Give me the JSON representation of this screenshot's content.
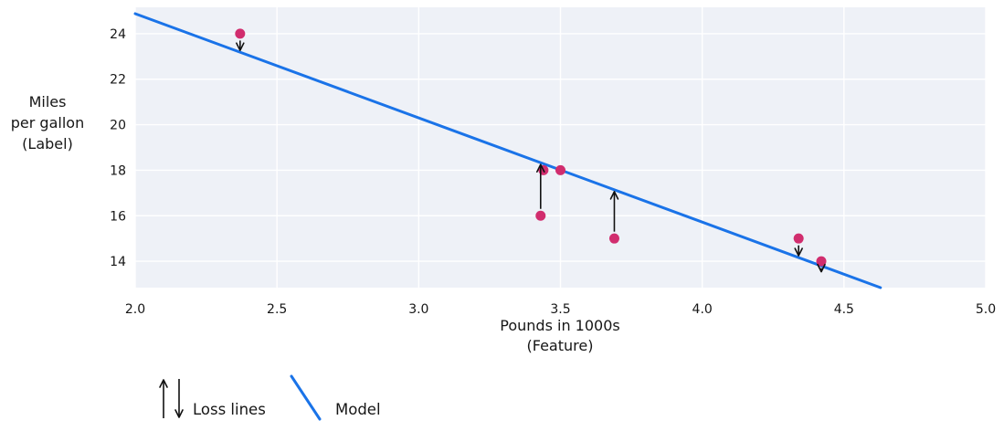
{
  "chart_data": {
    "type": "scatter",
    "title": "",
    "xlabel_line1": "Pounds in 1000s",
    "xlabel_line2": "(Feature)",
    "ylabel_line1": "Miles",
    "ylabel_line2": "per gallon",
    "ylabel_line3": "(Label)",
    "xlim": [
      2.0,
      5.0
    ],
    "ylim": [
      12.84,
      25.16
    ],
    "x_ticks": [
      {
        "v": 2.0,
        "label": "2.0"
      },
      {
        "v": 2.5,
        "label": "2.5"
      },
      {
        "v": 3.0,
        "label": "3.0"
      },
      {
        "v": 3.5,
        "label": "3.5"
      },
      {
        "v": 4.0,
        "label": "4.0"
      },
      {
        "v": 4.5,
        "label": "4.5"
      },
      {
        "v": 5.0,
        "label": "5.0"
      }
    ],
    "y_ticks": [
      {
        "v": 14,
        "label": "14"
      },
      {
        "v": 16,
        "label": "16"
      },
      {
        "v": 18,
        "label": "18"
      },
      {
        "v": 20,
        "label": "20"
      },
      {
        "v": 22,
        "label": "22"
      },
      {
        "v": 24,
        "label": "24"
      }
    ],
    "points": [
      {
        "x": 2.37,
        "y": 24,
        "loss_arrow": true
      },
      {
        "x": 3.43,
        "y": 16,
        "loss_arrow": true
      },
      {
        "x": 3.44,
        "y": 18,
        "loss_arrow": false
      },
      {
        "x": 3.5,
        "y": 18,
        "loss_arrow": false
      },
      {
        "x": 3.69,
        "y": 15,
        "loss_arrow": true
      },
      {
        "x": 4.34,
        "y": 15,
        "loss_arrow": true
      },
      {
        "x": 4.42,
        "y": 14,
        "loss_arrow": true
      }
    ],
    "model_line": {
      "slope": -4.58,
      "intercept": 34.04
    },
    "legend": {
      "loss_label": "Loss lines",
      "model_label": "Model"
    },
    "grid": true,
    "legend_position": "bottom-left",
    "colors": {
      "plot_bg": "#eef1f7",
      "grid": "#ffffff",
      "model_line": "#1a73e8",
      "point": "#d12d6e",
      "arrow": "#111111",
      "text": "#161616"
    }
  }
}
